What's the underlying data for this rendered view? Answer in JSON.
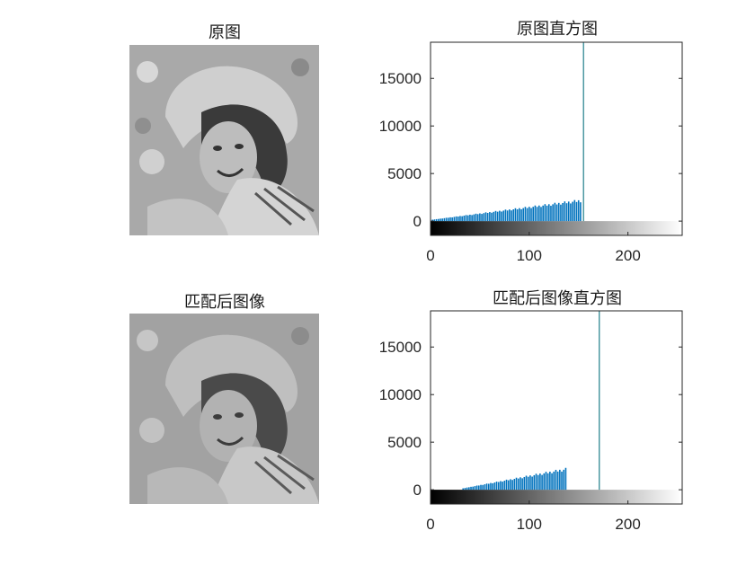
{
  "figure": {
    "panels": [
      {
        "title": "原图"
      },
      {
        "title": "原图直方图"
      },
      {
        "title": "匹配后图像"
      },
      {
        "title": "匹配后图像直方图"
      }
    ]
  },
  "colors": {
    "bar": "#0072BD",
    "peak_line": "#1f7f8a",
    "axis": "#262626",
    "photo_light": "#c9c9c9",
    "photo_mid": "#9a9a9a",
    "photo_dark": "#2e2e2e"
  },
  "chart_data": [
    {
      "type": "bar",
      "title": "原图直方图",
      "xlim": [
        0,
        255
      ],
      "ylim": [
        -1500,
        18800
      ],
      "xticks": [
        0,
        100,
        200
      ],
      "yticks": [
        0,
        5000,
        10000,
        15000
      ],
      "colorbar": "gray",
      "bars": {
        "x_start": 2,
        "x_end": 152,
        "step": 2,
        "y_start": 150,
        "y_end": 2300
      },
      "peak": {
        "x": 155,
        "y": 18800
      }
    },
    {
      "type": "bar",
      "title": "匹配后图像直方图",
      "xlim": [
        0,
        255
      ],
      "ylim": [
        -1500,
        18800
      ],
      "xticks": [
        0,
        100,
        200
      ],
      "yticks": [
        0,
        5000,
        10000,
        15000
      ],
      "colorbar": "gray",
      "bars": {
        "x_start": 33,
        "x_end": 138,
        "step": 2,
        "y_start": 150,
        "y_end": 2300
      },
      "peak": {
        "x": 171,
        "y": 18800
      }
    }
  ]
}
